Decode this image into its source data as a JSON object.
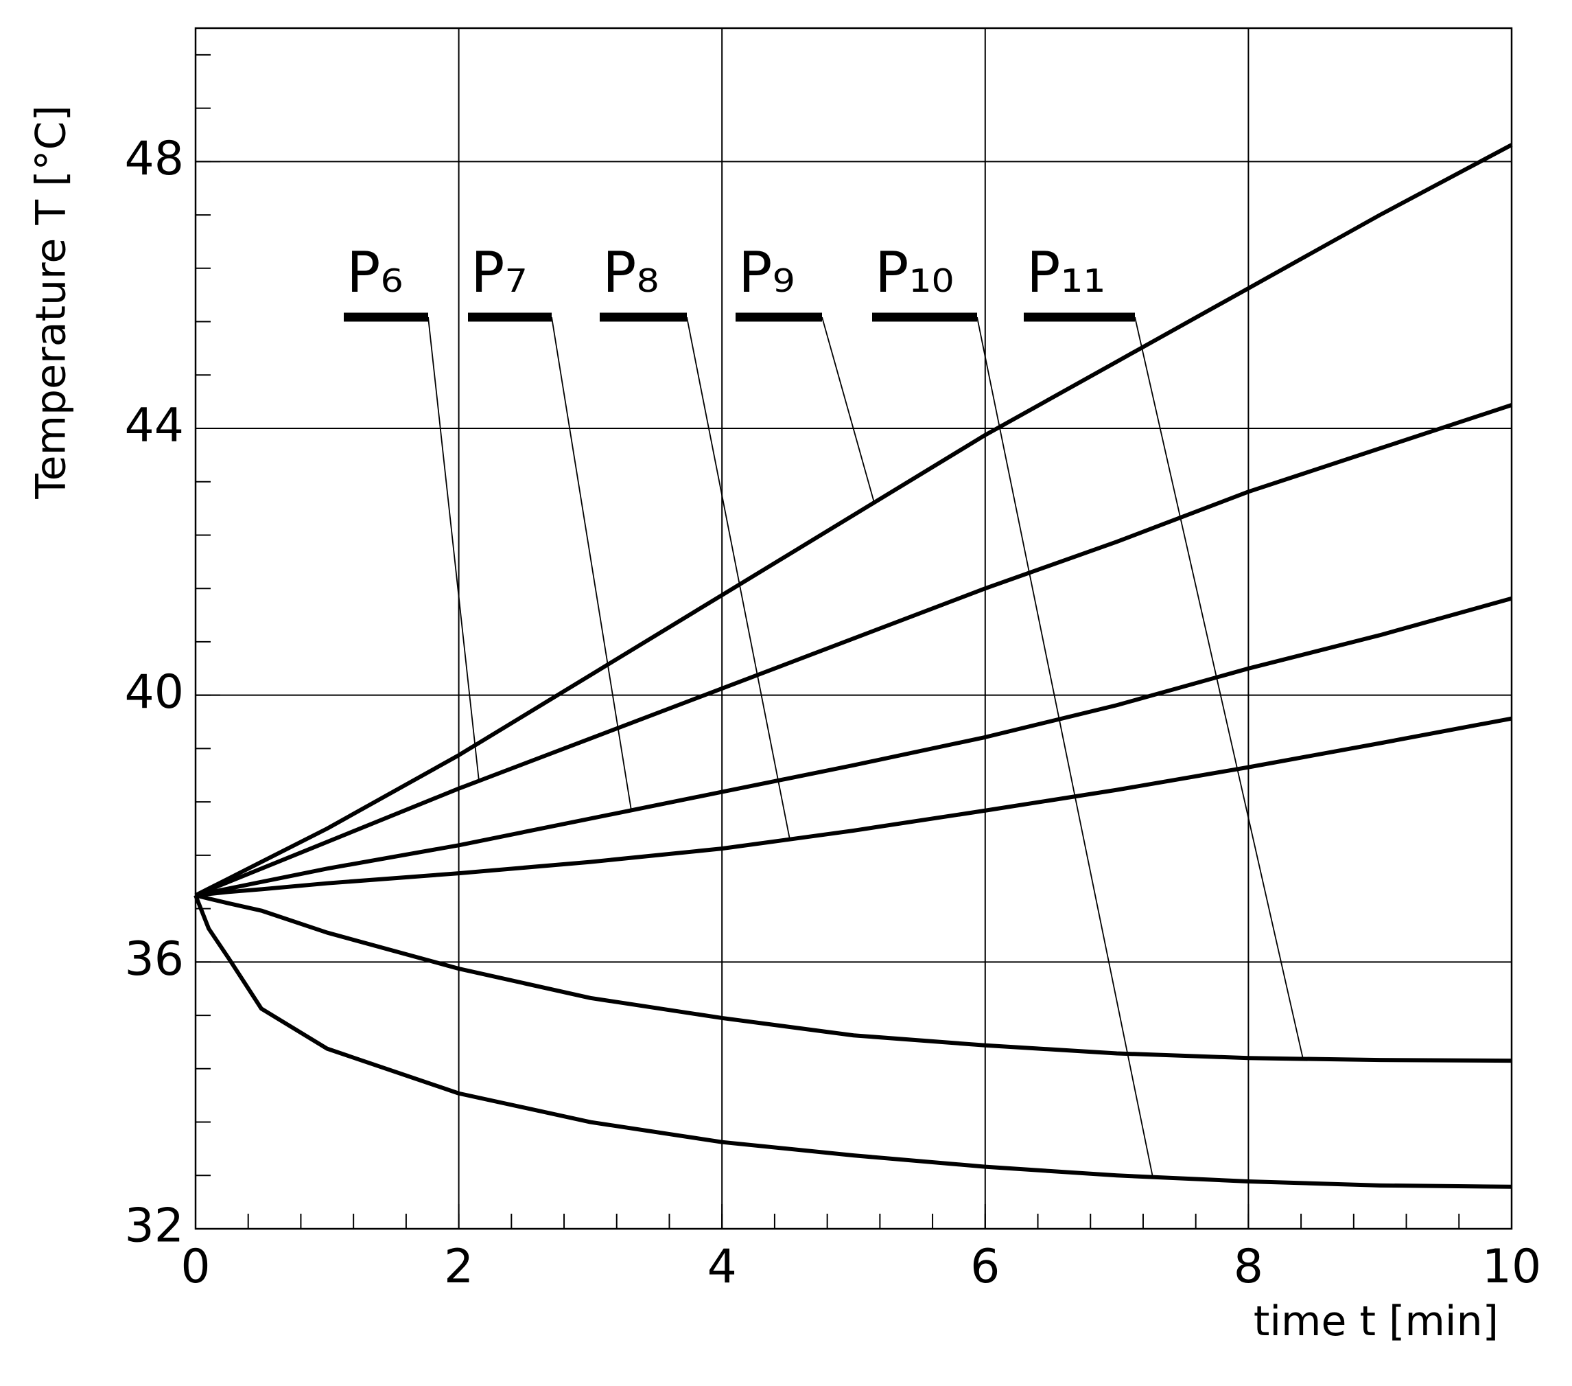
{
  "chart_data": {
    "type": "line",
    "x_label": "time t [min]",
    "y_label": "Temperature T [°C]",
    "x": [
      0,
      0.1,
      0.25,
      0.5,
      1,
      2,
      3,
      4,
      5,
      6,
      7,
      8,
      9,
      10
    ],
    "xlim": [
      0,
      10
    ],
    "xticks": [
      0,
      2,
      4,
      6,
      8,
      10
    ],
    "ylim": [
      32,
      50
    ],
    "yticks": [
      32,
      36,
      40,
      44,
      48
    ],
    "grid": true,
    "series": [
      {
        "name": "P₆",
        "color": "#000000",
        "values": [
          37,
          37.08,
          37.2,
          37.4,
          37.8,
          38.6,
          39.35,
          40.1,
          40.85,
          41.6,
          42.3,
          43.05,
          43.7,
          44.35
        ]
      },
      {
        "name": "P₇",
        "color": "#000000",
        "values": [
          37,
          37.04,
          37.1,
          37.2,
          37.4,
          37.75,
          38.15,
          38.55,
          38.95,
          39.37,
          39.85,
          40.4,
          40.9,
          41.45
        ]
      },
      {
        "name": "P₈",
        "color": "#000000",
        "values": [
          37,
          37.02,
          37.05,
          37.09,
          37.18,
          37.33,
          37.5,
          37.7,
          37.97,
          38.27,
          38.58,
          38.92,
          39.28,
          39.65
        ]
      },
      {
        "name": "P₉",
        "color": "#000000",
        "values": [
          37,
          37.1,
          37.25,
          37.5,
          38.0,
          39.1,
          40.3,
          41.5,
          42.7,
          43.9,
          45.0,
          46.1,
          47.2,
          48.25
        ]
      },
      {
        "name": "P₁₀",
        "color": "#000000",
        "values": [
          37,
          36.5,
          36.06,
          35.3,
          34.7,
          34.03,
          33.6,
          33.3,
          33.1,
          32.93,
          32.8,
          32.71,
          32.65,
          32.63
        ]
      },
      {
        "name": "P₁₁",
        "color": "#000000",
        "values": [
          37,
          36.95,
          36.88,
          36.77,
          36.44,
          35.9,
          35.46,
          35.16,
          34.9,
          34.75,
          34.63,
          34.56,
          34.53,
          34.52
        ]
      }
    ]
  }
}
